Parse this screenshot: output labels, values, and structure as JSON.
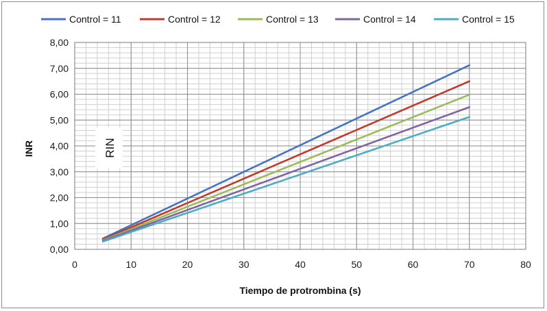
{
  "chart_data": {
    "type": "line",
    "title": "",
    "xlabel": "Tiempo de protrombina (s)",
    "ylabel": "INR",
    "xlim": [
      0,
      80
    ],
    "ylim": [
      0,
      8
    ],
    "x_ticks": [
      "0",
      "10",
      "20",
      "30",
      "40",
      "50",
      "60",
      "70",
      "80"
    ],
    "y_ticks": [
      "0,00",
      "1,00",
      "2,00",
      "3,00",
      "4,00",
      "5,00",
      "6,00",
      "7,00",
      "8,00"
    ],
    "grid": "major and minor",
    "legend_position": "top",
    "annotation": "RIN",
    "x": [
      5,
      70
    ],
    "series": [
      {
        "name": "Control = 11",
        "color": "#4472c4",
        "values": [
          0.42,
          7.12
        ]
      },
      {
        "name": "Control = 12",
        "color": "#c0392b",
        "values": [
          0.38,
          6.5
        ]
      },
      {
        "name": "Control = 13",
        "color": "#9bbb59",
        "values": [
          0.35,
          5.98
        ]
      },
      {
        "name": "Control = 14",
        "color": "#8064a2",
        "values": [
          0.33,
          5.5
        ]
      },
      {
        "name": "Control = 15",
        "color": "#4bacc6",
        "values": [
          0.3,
          5.12
        ]
      }
    ]
  }
}
